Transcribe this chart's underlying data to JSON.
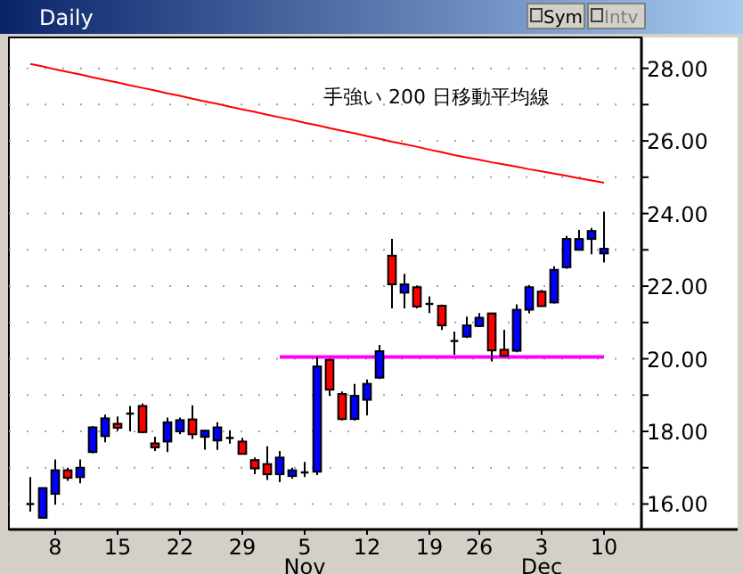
{
  "chart_data": {
    "type": "candlestick",
    "title": "Daily",
    "categories": [
      null,
      null,
      "8",
      null,
      null,
      null,
      null,
      "15",
      null,
      null,
      null,
      null,
      "22",
      null,
      null,
      null,
      null,
      "29",
      null,
      null,
      null,
      null,
      "5",
      null,
      null,
      null,
      null,
      "12",
      null,
      null,
      null,
      null,
      "19",
      null,
      null,
      null,
      "26",
      null,
      null,
      null,
      null,
      "3",
      null,
      null,
      null,
      null,
      "10"
    ],
    "ohlc": [
      [
        16.0,
        16.74,
        15.79,
        16.0
      ],
      [
        15.62,
        16.44,
        15.6,
        16.44
      ],
      [
        16.28,
        17.23,
        15.98,
        16.93
      ],
      [
        16.93,
        17.0,
        16.64,
        16.72
      ],
      [
        16.74,
        17.23,
        16.57,
        17.0
      ],
      [
        17.43,
        18.15,
        17.4,
        18.11
      ],
      [
        17.87,
        18.46,
        17.7,
        18.36
      ],
      [
        18.21,
        18.41,
        18.02,
        18.1
      ],
      [
        18.49,
        18.7,
        18.0,
        18.49
      ],
      [
        18.7,
        18.77,
        17.95,
        17.98
      ],
      [
        17.67,
        17.85,
        17.46,
        17.56
      ],
      [
        17.72,
        18.38,
        17.43,
        18.25
      ],
      [
        18.0,
        18.38,
        17.92,
        18.31
      ],
      [
        18.33,
        18.72,
        17.79,
        17.92
      ],
      [
        17.85,
        18.05,
        17.5,
        18.02
      ],
      [
        17.75,
        18.25,
        17.49,
        18.11
      ],
      [
        17.82,
        18.03,
        17.66,
        17.82
      ],
      [
        17.72,
        17.82,
        17.36,
        17.38
      ],
      [
        17.21,
        17.28,
        16.82,
        16.98
      ],
      [
        17.1,
        17.59,
        16.66,
        16.82
      ],
      [
        16.82,
        17.46,
        16.6,
        17.28
      ],
      [
        16.77,
        17.0,
        16.7,
        16.93
      ],
      [
        16.87,
        17.16,
        16.74,
        16.87
      ],
      [
        16.89,
        20.05,
        16.8,
        19.79
      ],
      [
        19.97,
        20.0,
        18.98,
        19.15
      ],
      [
        19.03,
        19.1,
        18.3,
        18.34
      ],
      [
        18.34,
        19.31,
        18.3,
        18.98
      ],
      [
        18.87,
        19.43,
        18.44,
        19.31
      ],
      [
        19.48,
        20.38,
        19.44,
        20.21
      ],
      [
        22.84,
        23.3,
        21.39,
        22.05
      ],
      [
        21.82,
        22.34,
        21.39,
        22.05
      ],
      [
        21.97,
        22.02,
        21.39,
        21.44
      ],
      [
        21.51,
        21.72,
        21.26,
        21.51
      ],
      [
        21.46,
        21.49,
        20.79,
        20.92
      ],
      [
        20.49,
        20.75,
        20.11,
        20.49
      ],
      [
        20.61,
        21.16,
        20.57,
        20.92
      ],
      [
        20.9,
        21.26,
        20.87,
        21.13
      ],
      [
        21.25,
        21.25,
        19.93,
        20.23
      ],
      [
        20.25,
        20.8,
        20.08,
        20.08
      ],
      [
        20.22,
        21.5,
        20.18,
        21.35
      ],
      [
        21.35,
        22.03,
        21.25,
        21.97
      ],
      [
        21.85,
        21.9,
        21.45,
        21.45
      ],
      [
        21.55,
        22.55,
        21.52,
        22.45
      ],
      [
        22.52,
        23.38,
        22.48,
        23.3
      ],
      [
        23.0,
        23.55,
        23.0,
        23.3
      ],
      [
        23.3,
        23.6,
        22.88,
        23.52
      ],
      [
        22.9,
        24.05,
        22.65,
        23.03
      ]
    ],
    "colors": [
      "#000000",
      "#0000ff",
      "#0000ff",
      "#ff0000",
      "#0000ff",
      "#0000ff",
      "#0000ff",
      "#ff0000",
      "#000000",
      "#ff0000",
      "#ff0000",
      "#0000ff",
      "#0000ff",
      "#ff0000",
      "#0000ff",
      "#0000ff",
      "#000000",
      "#ff0000",
      "#ff0000",
      "#ff0000",
      "#0000ff",
      "#0000ff",
      "#000000",
      "#0000ff",
      "#ff0000",
      "#ff0000",
      "#0000ff",
      "#0000ff",
      "#0000ff",
      "#ff0000",
      "#0000ff",
      "#ff0000",
      "#000000",
      "#ff0000",
      "#000000",
      "#0000ff",
      "#0000ff",
      "#ff0000",
      "#ff0000",
      "#0000ff",
      "#0000ff",
      "#ff0000",
      "#0000ff",
      "#0000ff",
      "#0000ff",
      "#0000ff",
      "#0000ff"
    ],
    "series": [
      {
        "type": "line",
        "color": "#ff0000",
        "values": [
          28.12,
          28.05,
          27.97,
          27.9,
          27.83,
          27.75,
          27.68,
          27.61,
          27.53,
          27.46,
          27.39,
          27.31,
          27.24,
          27.16,
          27.09,
          27.02,
          26.94,
          26.87,
          26.8,
          26.72,
          26.65,
          26.58,
          26.5,
          26.43,
          26.35,
          26.28,
          26.21,
          26.13,
          26.06,
          25.98,
          25.91,
          25.84,
          25.76,
          25.69,
          25.61,
          25.54,
          25.48,
          25.41,
          25.35,
          25.29,
          25.22,
          25.16,
          25.1,
          25.04,
          24.97,
          24.91,
          24.85
        ]
      },
      {
        "type": "line",
        "color": "#ff00ff",
        "values": [
          null,
          null,
          null,
          null,
          null,
          null,
          null,
          null,
          null,
          null,
          null,
          null,
          null,
          null,
          null,
          null,
          null,
          null,
          null,
          null,
          20.05,
          20.05,
          20.05,
          20.05,
          20.05,
          20.05,
          20.05,
          20.05,
          20.05,
          20.05,
          20.05,
          20.05,
          20.05,
          20.05,
          20.05,
          20.05,
          20.05,
          20.05,
          20.05,
          20.05,
          20.05,
          20.05,
          20.05,
          20.05,
          20.05,
          20.05,
          20.05
        ]
      }
    ],
    "ylim": [
      15.3,
      28.85
    ],
    "yticks": [
      {
        "value": 16,
        "label": "16.00"
      },
      {
        "value": 17,
        "label": null
      },
      {
        "value": 18,
        "label": "18.00"
      },
      {
        "value": 19,
        "label": null
      },
      {
        "value": 20,
        "label": "20.00"
      },
      {
        "value": 21,
        "label": null
      },
      {
        "value": 22,
        "label": "22.00"
      },
      {
        "value": 23,
        "label": null
      },
      {
        "value": 24,
        "label": "24.00"
      },
      {
        "value": 25,
        "label": null
      },
      {
        "value": 26,
        "label": "26.00"
      },
      {
        "value": 27,
        "label": null
      },
      {
        "value": 28,
        "label": "28.00"
      }
    ],
    "grid": "y",
    "annotations": [
      "手強い 200 日移動平均線",
      {
        "text": "Nov",
        "x": "5"
      },
      {
        "text": "Dec",
        "x": "3"
      },
      "Sym",
      "Intv"
    ]
  }
}
